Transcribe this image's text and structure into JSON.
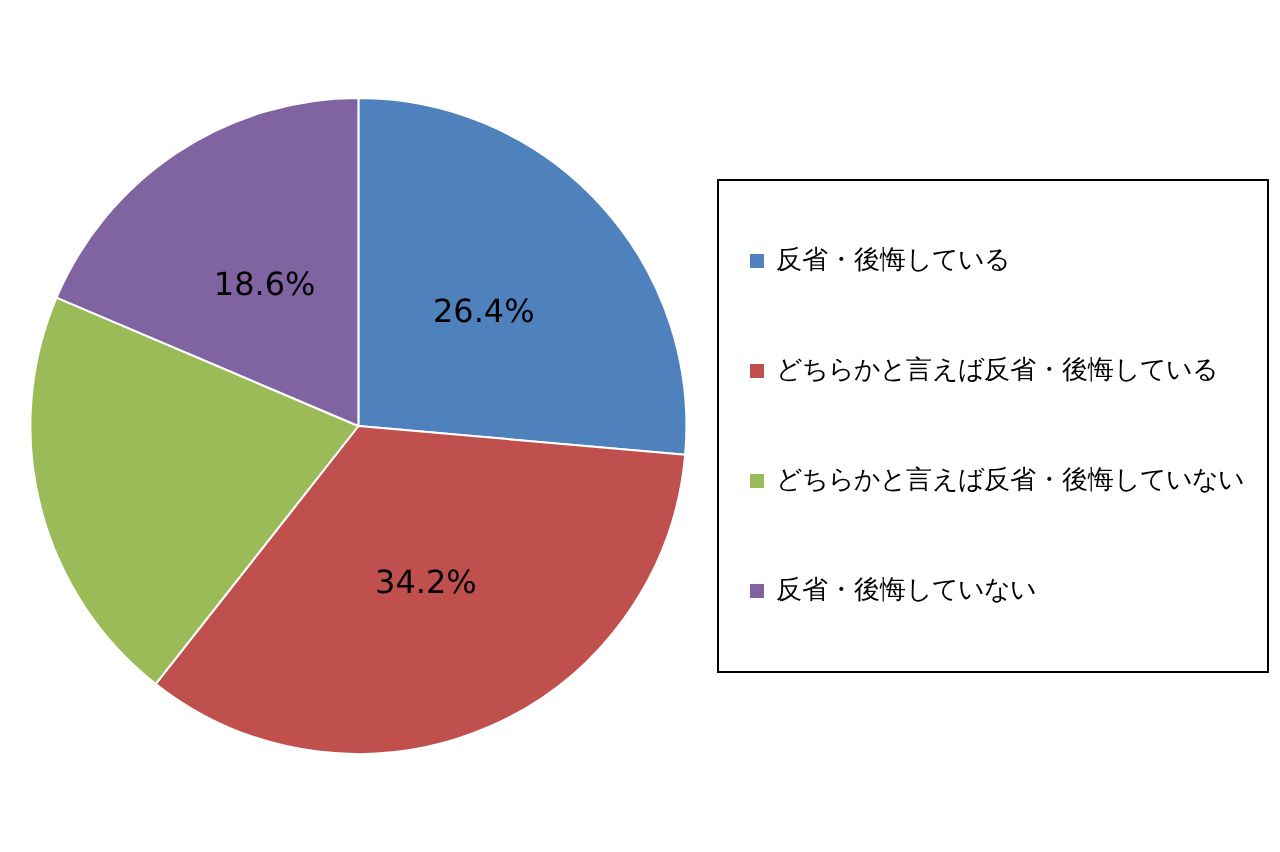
{
  "chart_data": {
    "type": "pie",
    "categories": [
      "反省・後悔している",
      "どちらかと言えば反省・後悔している",
      "どちらかと言えば反省・後悔していない",
      "反省・後悔していない"
    ],
    "values": [
      26.4,
      34.2,
      20.8,
      18.6
    ],
    "colors": [
      "#4f81bd",
      "#c0504d",
      "#9bbb59",
      "#8064a2"
    ],
    "value_labels": [
      "26.4%",
      "34.2%",
      null,
      "18.6%"
    ],
    "legend": "right"
  }
}
